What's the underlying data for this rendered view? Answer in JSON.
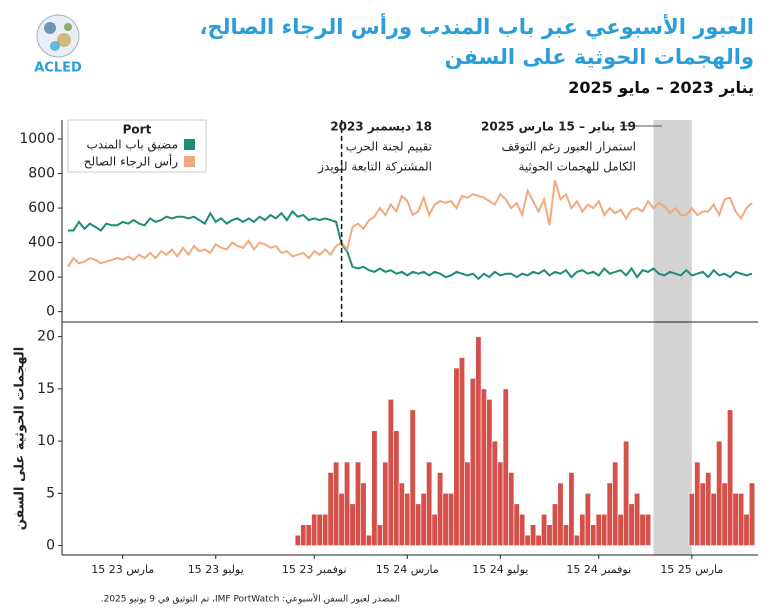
{
  "logo": "ACLED",
  "title": "العبور الأسبوعي عبر باب المندب ورأس الرجاء الصالح، والهجمات الحوثية على السفن",
  "subtitle": "يناير 2023 – مايو 2025",
  "source": "المصدر لعبور السفن الأسبوعي: IMF PortWatch، تم التوثيق في 9 يونيو 2025.",
  "annotations": [
    {
      "lines": [
        "18 ديسمبر 2023",
        "تقييم لجنة الحرب",
        "المشتركة التابعة للويدز"
      ]
    },
    {
      "lines": [
        "19 يناير – 15 مارس 2025",
        "استمرار العبور رغم التوقف",
        "الكامل للهجمات الحوثية"
      ]
    }
  ],
  "chart_data": [
    {
      "type": "line",
      "legend_title": "Port",
      "legend": "upper left",
      "ylim": [
        -60,
        1110
      ],
      "yticks": [
        0,
        200,
        400,
        600,
        800,
        1000
      ],
      "series": [
        {
          "name": "مضيق باب المندب",
          "color": "#1e8c76",
          "values": [
            470,
            470,
            520,
            480,
            510,
            490,
            470,
            510,
            500,
            500,
            520,
            510,
            530,
            510,
            500,
            540,
            520,
            530,
            550,
            540,
            550,
            550,
            540,
            550,
            530,
            510,
            570,
            520,
            540,
            510,
            530,
            540,
            520,
            540,
            520,
            550,
            530,
            560,
            540,
            570,
            530,
            580,
            550,
            560,
            530,
            540,
            530,
            540,
            530,
            520,
            390,
            350,
            260,
            250,
            260,
            240,
            230,
            250,
            230,
            240,
            220,
            230,
            210,
            230,
            220,
            230,
            210,
            230,
            220,
            200,
            210,
            230,
            220,
            210,
            220,
            190,
            220,
            200,
            230,
            210,
            220,
            220,
            200,
            220,
            210,
            230,
            220,
            240,
            210,
            230,
            220,
            240,
            200,
            230,
            240,
            220,
            230,
            210,
            250,
            220,
            230,
            240,
            210,
            250,
            200,
            240,
            230,
            250,
            220,
            210,
            230,
            220,
            210,
            240,
            210,
            220,
            230,
            200,
            240,
            210,
            220,
            200,
            230,
            220,
            210,
            220
          ]
        },
        {
          "name": "رأس الرجاء الصالح",
          "color": "#f2a97e",
          "values": [
            260,
            310,
            280,
            290,
            310,
            300,
            280,
            290,
            300,
            310,
            300,
            320,
            300,
            330,
            310,
            340,
            310,
            350,
            330,
            360,
            320,
            370,
            330,
            380,
            350,
            360,
            340,
            390,
            370,
            360,
            400,
            380,
            370,
            410,
            360,
            400,
            390,
            370,
            380,
            340,
            350,
            320,
            330,
            340,
            310,
            350,
            330,
            360,
            330,
            380,
            400,
            360,
            490,
            510,
            480,
            530,
            550,
            600,
            560,
            620,
            580,
            670,
            640,
            560,
            580,
            660,
            560,
            620,
            640,
            630,
            640,
            600,
            670,
            660,
            680,
            670,
            660,
            640,
            620,
            680,
            650,
            600,
            630,
            560,
            700,
            640,
            580,
            650,
            500,
            760,
            650,
            680,
            600,
            640,
            580,
            620,
            600,
            640,
            560,
            600,
            570,
            590,
            540,
            590,
            600,
            580,
            640,
            600,
            630,
            610,
            570,
            600,
            560,
            560,
            600,
            560,
            580,
            580,
            620,
            560,
            650,
            660,
            580,
            540,
            600,
            630
          ]
        }
      ]
    },
    {
      "type": "bar",
      "ylabel": "الهجمات الحوثية على السفن",
      "color": "#d6504a",
      "ylim": [
        -0.9,
        21.4
      ],
      "yticks": [
        0,
        5,
        10,
        15,
        20
      ],
      "categories": [
        null,
        null,
        null,
        null,
        null,
        null,
        null,
        null,
        null,
        null,
        "15 مارس 23",
        null,
        null,
        null,
        null,
        null,
        null,
        null,
        null,
        null,
        null,
        null,
        null,
        null,
        null,
        null,
        null,
        "15 يوليو 23",
        null,
        null,
        null,
        null,
        null,
        null,
        null,
        null,
        null,
        null,
        null,
        null,
        null,
        null,
        null,
        null,
        null,
        "15 نوفمبر 23",
        null,
        null,
        null,
        null,
        null,
        null,
        null,
        null,
        null,
        null,
        null,
        null,
        null,
        null,
        null,
        null,
        "15 مارس 24",
        null,
        null,
        null,
        null,
        null,
        null,
        null,
        null,
        null,
        null,
        null,
        null,
        null,
        null,
        null,
        null,
        "15 يوليو 24",
        null,
        null,
        null,
        null,
        null,
        null,
        null,
        null,
        null,
        null,
        null,
        null,
        null,
        null,
        null,
        null,
        null,
        "15 نوفمبر 24",
        null,
        null,
        null,
        null,
        null,
        null,
        null,
        null,
        null,
        null,
        null,
        null,
        null,
        null,
        null,
        null,
        "15 مارس 25",
        null,
        null,
        null,
        null,
        null,
        null,
        null,
        null,
        null,
        null,
        null
      ],
      "values": [
        0,
        0,
        0,
        0,
        0,
        0,
        0,
        0,
        0,
        0,
        0,
        0,
        0,
        0,
        0,
        0,
        0,
        0,
        0,
        0,
        0,
        0,
        0,
        0,
        0,
        0,
        0,
        0,
        0,
        0,
        0,
        0,
        0,
        0,
        0,
        0,
        0,
        0,
        0,
        0,
        0,
        0,
        1,
        2,
        2,
        3,
        3,
        3,
        7,
        8,
        5,
        8,
        4,
        8,
        6,
        1,
        11,
        2,
        8,
        14,
        11,
        6,
        5,
        13,
        4,
        5,
        8,
        3,
        7,
        5,
        5,
        17,
        18,
        8,
        16,
        20,
        15,
        14,
        10,
        8,
        15,
        7,
        4,
        3,
        1,
        2,
        1,
        3,
        2,
        4,
        6,
        2,
        7,
        1,
        3,
        5,
        2,
        3,
        3,
        6,
        8,
        3,
        10,
        4,
        5,
        3,
        3,
        0,
        0,
        0,
        0,
        0,
        0,
        0,
        5,
        8,
        6,
        7,
        5,
        10,
        6,
        13,
        5,
        5,
        3,
        6
      ]
    }
  ]
}
